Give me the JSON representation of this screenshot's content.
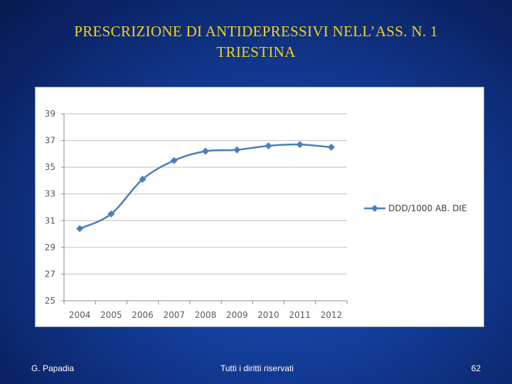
{
  "slide": {
    "title_line1": "PRESCRIZIONE DI ANTIDEPRESSIVI  NELL’ASS. N. 1",
    "title_line2": "TRIESTINA"
  },
  "footer": {
    "author": "G. Papadia",
    "rights": "Tutti i diritti riservati",
    "page_number": "62"
  },
  "colors": {
    "series_line": "#4a7ebb",
    "gridline": "#c0c0c0",
    "title_text": "#f2d21f"
  },
  "chart_data": {
    "type": "line",
    "title": "",
    "xlabel": "",
    "ylabel": "",
    "categories": [
      "2004",
      "2005",
      "2006",
      "2007",
      "2008",
      "2009",
      "2010",
      "2011",
      "2012"
    ],
    "series": [
      {
        "name": "DDD/1000 AB. DIE",
        "values": [
          30.4,
          31.5,
          34.1,
          35.5,
          36.2,
          36.3,
          36.6,
          36.7,
          36.5
        ],
        "marker": "diamond"
      }
    ],
    "ylim": [
      25,
      39
    ],
    "yticks": [
      "25",
      "27",
      "29",
      "31",
      "33",
      "35",
      "37",
      "39"
    ],
    "grid": true,
    "legend": "right"
  }
}
